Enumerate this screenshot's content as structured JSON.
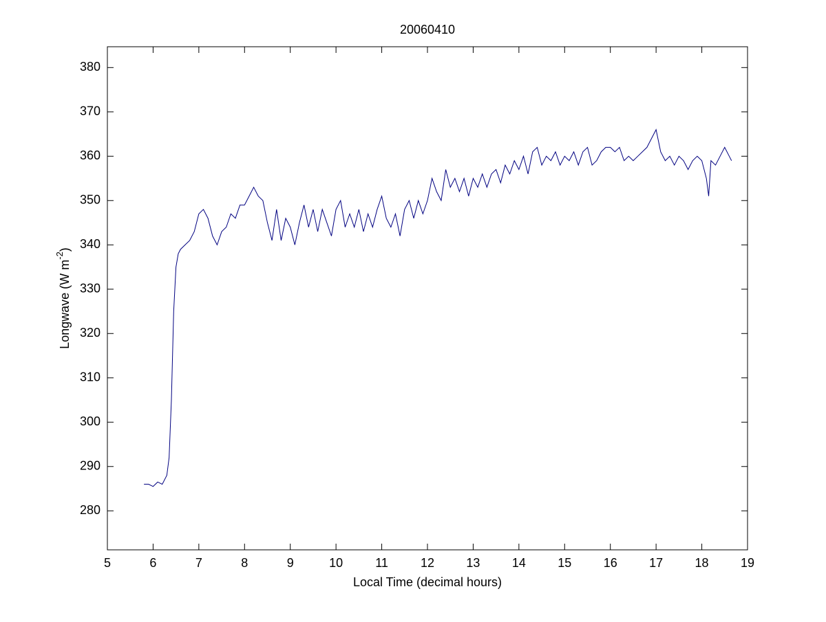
{
  "chart_data": {
    "type": "line",
    "title": "20060410",
    "xlabel": "Local Time (decimal hours)",
    "ylabel": [
      "Longwave (W m",
      "-2",
      ")"
    ],
    "xlim": [
      5,
      19
    ],
    "xticks": [
      5,
      6,
      7,
      8,
      9,
      10,
      11,
      12,
      13,
      14,
      15,
      16,
      17,
      18,
      19
    ],
    "ylim": [
      271.2,
      384.7
    ],
    "yticks": [
      280,
      290,
      300,
      310,
      320,
      330,
      340,
      350,
      360,
      370,
      380
    ],
    "series": [
      {
        "color": "#000080",
        "x": [
          5.8,
          5.9,
          6.0,
          6.1,
          6.2,
          6.3,
          6.35,
          6.4,
          6.45,
          6.5,
          6.55,
          6.6,
          6.7,
          6.8,
          6.9,
          7.0,
          7.1,
          7.2,
          7.3,
          7.4,
          7.5,
          7.6,
          7.7,
          7.8,
          7.9,
          8.0,
          8.1,
          8.2,
          8.3,
          8.4,
          8.5,
          8.6,
          8.7,
          8.8,
          8.9,
          9.0,
          9.1,
          9.2,
          9.3,
          9.4,
          9.5,
          9.6,
          9.7,
          9.8,
          9.9,
          10.0,
          10.1,
          10.2,
          10.3,
          10.4,
          10.5,
          10.6,
          10.7,
          10.8,
          10.9,
          11.0,
          11.1,
          11.2,
          11.3,
          11.4,
          11.5,
          11.6,
          11.7,
          11.8,
          11.9,
          12.0,
          12.1,
          12.2,
          12.3,
          12.4,
          12.5,
          12.6,
          12.7,
          12.8,
          12.9,
          13.0,
          13.1,
          13.2,
          13.3,
          13.4,
          13.5,
          13.6,
          13.7,
          13.8,
          13.9,
          14.0,
          14.1,
          14.2,
          14.3,
          14.4,
          14.5,
          14.6,
          14.7,
          14.8,
          14.9,
          15.0,
          15.1,
          15.2,
          15.3,
          15.4,
          15.5,
          15.6,
          15.7,
          15.8,
          15.9,
          16.0,
          16.1,
          16.2,
          16.3,
          16.4,
          16.5,
          16.6,
          16.7,
          16.8,
          16.9,
          17.0,
          17.1,
          17.2,
          17.3,
          17.4,
          17.5,
          17.6,
          17.7,
          17.8,
          17.9,
          18.0,
          18.1,
          18.15,
          18.2,
          18.3,
          18.4,
          18.5,
          18.6,
          18.65
        ],
        "values": [
          286,
          286,
          285.5,
          286.5,
          286,
          288,
          292,
          305,
          325,
          335,
          338,
          339,
          340,
          341,
          343,
          347,
          348,
          346,
          342,
          340,
          343,
          344,
          347,
          346,
          349,
          349,
          351,
          353,
          351,
          350,
          345,
          341,
          348,
          341,
          346,
          344,
          340,
          345,
          349,
          344,
          348,
          343,
          348,
          345,
          342,
          348,
          350,
          344,
          347,
          344,
          348,
          343,
          347,
          344,
          348,
          351,
          346,
          344,
          347,
          342,
          348,
          350,
          346,
          350,
          347,
          350,
          355,
          352,
          350,
          357,
          353,
          355,
          352,
          355,
          351,
          355,
          353,
          356,
          353,
          356,
          357,
          354,
          358,
          356,
          359,
          357,
          360,
          356,
          361,
          362,
          358,
          360,
          359,
          361,
          358,
          360,
          359,
          361,
          358,
          361,
          362,
          358,
          359,
          361,
          362,
          362,
          361,
          362,
          359,
          360,
          359,
          360,
          361,
          362,
          364,
          366,
          361,
          359,
          360,
          358,
          360,
          359,
          357,
          359,
          360,
          359,
          355,
          351,
          359,
          358,
          360,
          362,
          360,
          359
        ]
      }
    ]
  }
}
